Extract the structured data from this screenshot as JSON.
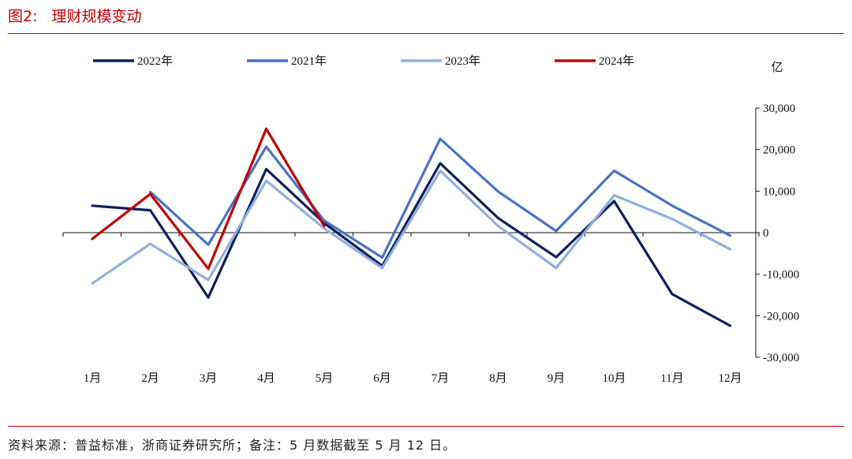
{
  "header": {
    "figure_number": "图2:",
    "title": "理财规模变动"
  },
  "footer": {
    "source": "资料来源：普益标准，浙商证券研究所；备注：5 月数据截至 5 月 12 日。"
  },
  "colors": {
    "accent_rule": "#c00000",
    "axis": "#111111"
  },
  "chart_data": {
    "type": "line",
    "title": "理财规模变动",
    "unit_label": "亿",
    "categories": [
      "1月",
      "2月",
      "3月",
      "4月",
      "5月",
      "6月",
      "7月",
      "8月",
      "9月",
      "10月",
      "11月",
      "12月"
    ],
    "ylim": [
      -30000,
      30000
    ],
    "yticks": [
      30000,
      20000,
      10000,
      0,
      -10000,
      -20000,
      -30000
    ],
    "ytick_labels": [
      "30,000",
      "20,000",
      "10,000",
      "0",
      "-10,000",
      "-20,000",
      "-30,000"
    ],
    "grid": false,
    "legend_position": "top",
    "series": [
      {
        "name": "2022年",
        "color": "#0d1f5c",
        "values": [
          6500,
          5400,
          -15600,
          15300,
          2300,
          -8000,
          16700,
          3500,
          -5900,
          7600,
          -14800,
          -22400
        ]
      },
      {
        "name": "2021年",
        "color": "#4a72c4",
        "values": [
          null,
          9800,
          -2900,
          20700,
          2900,
          -6000,
          22600,
          9900,
          400,
          14900,
          6500,
          -700
        ]
      },
      {
        "name": "2023年",
        "color": "#92aedf",
        "values": [
          -12200,
          -2700,
          -11400,
          12500,
          1000,
          -8500,
          14900,
          1600,
          -8500,
          9000,
          3300,
          -4000
        ]
      },
      {
        "name": "2024年",
        "color": "#c00000",
        "values": [
          -1500,
          9300,
          -8700,
          25000,
          1600,
          null,
          null,
          null,
          null,
          null,
          null,
          null
        ]
      }
    ]
  }
}
